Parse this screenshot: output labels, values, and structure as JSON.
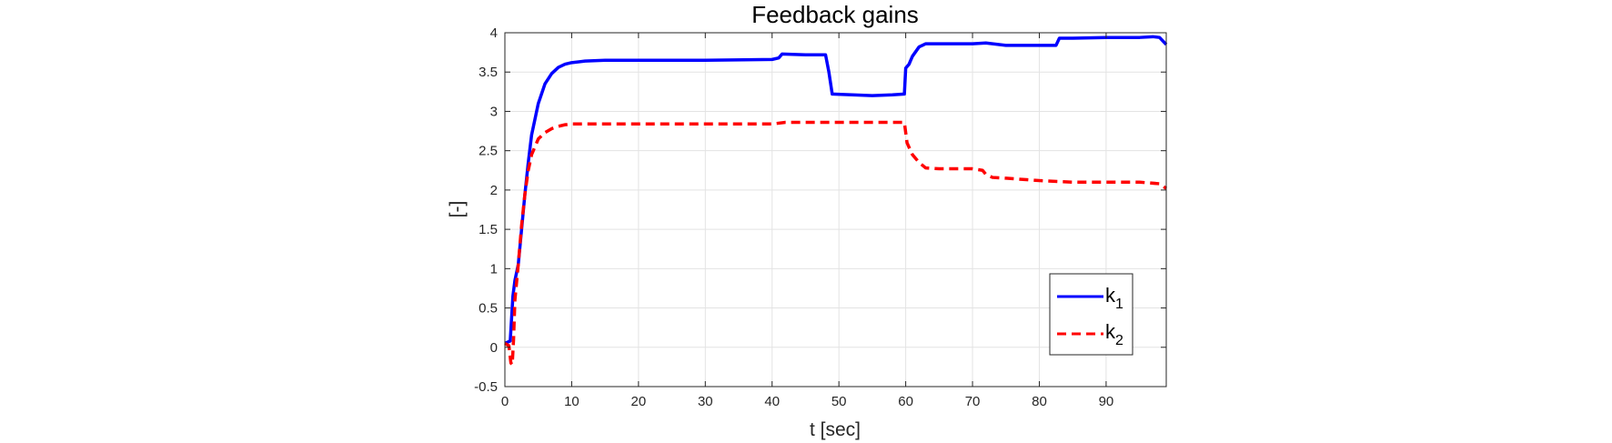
{
  "chart_data": {
    "type": "line",
    "title": "Feedback gains",
    "xlabel": "t [sec]",
    "ylabel": "[-]",
    "xlim": [
      0,
      99
    ],
    "ylim": [
      -0.5,
      4
    ],
    "xticks": [
      0,
      10,
      20,
      30,
      40,
      50,
      60,
      70,
      80,
      90
    ],
    "yticks": [
      -0.5,
      0,
      0.5,
      1,
      1.5,
      2,
      2.5,
      3,
      3.5,
      4
    ],
    "ytick_labels": [
      "-0.5",
      "0",
      "0.5",
      "1",
      "1.5",
      "2",
      "2.5",
      "3",
      "3.5",
      "4"
    ],
    "grid": true,
    "legend_position": "bottom-right",
    "series": [
      {
        "name": "k",
        "subscript": "1",
        "color": "#0000ff",
        "style": "solid",
        "x": [
          0,
          0.8,
          1.2,
          1.5,
          2,
          2.5,
          3,
          3.5,
          4,
          5,
          6,
          7,
          8,
          9,
          10,
          12,
          15,
          20,
          30,
          40,
          41,
          41.5,
          45,
          48,
          48.5,
          49,
          52,
          55,
          58,
          59.8,
          60,
          60.5,
          61,
          62,
          63,
          65,
          70,
          72,
          75,
          80,
          82.5,
          83,
          85,
          90,
          95,
          97,
          98,
          99
        ],
        "y": [
          0.05,
          0.08,
          0.65,
          0.85,
          1.05,
          1.5,
          1.95,
          2.35,
          2.7,
          3.1,
          3.35,
          3.48,
          3.56,
          3.6,
          3.62,
          3.64,
          3.65,
          3.65,
          3.65,
          3.66,
          3.68,
          3.73,
          3.72,
          3.72,
          3.5,
          3.22,
          3.21,
          3.2,
          3.21,
          3.22,
          3.55,
          3.6,
          3.7,
          3.82,
          3.86,
          3.86,
          3.86,
          3.87,
          3.84,
          3.84,
          3.84,
          3.93,
          3.93,
          3.94,
          3.94,
          3.95,
          3.94,
          3.85
        ]
      },
      {
        "name": "k",
        "subscript": "2",
        "color": "#ff0000",
        "style": "dashed",
        "x": [
          0,
          0.6,
          0.9,
          1.1,
          1.3,
          1.5,
          2,
          2.5,
          3,
          3.5,
          4,
          5,
          6,
          7,
          8,
          9,
          10,
          12,
          15,
          20,
          30,
          40,
          42,
          50,
          55,
          59.8,
          60.2,
          61,
          62,
          63,
          65,
          70,
          71.5,
          72,
          73,
          75,
          80,
          85,
          90,
          95,
          98,
          99
        ],
        "y": [
          0.05,
          0.02,
          -0.2,
          -0.22,
          0.1,
          0.6,
          1.05,
          1.55,
          1.95,
          2.25,
          2.45,
          2.65,
          2.73,
          2.78,
          2.81,
          2.83,
          2.84,
          2.84,
          2.84,
          2.84,
          2.84,
          2.84,
          2.86,
          2.86,
          2.86,
          2.86,
          2.6,
          2.45,
          2.35,
          2.28,
          2.27,
          2.27,
          2.25,
          2.2,
          2.16,
          2.15,
          2.12,
          2.1,
          2.1,
          2.1,
          2.08,
          2.02
        ]
      }
    ]
  }
}
